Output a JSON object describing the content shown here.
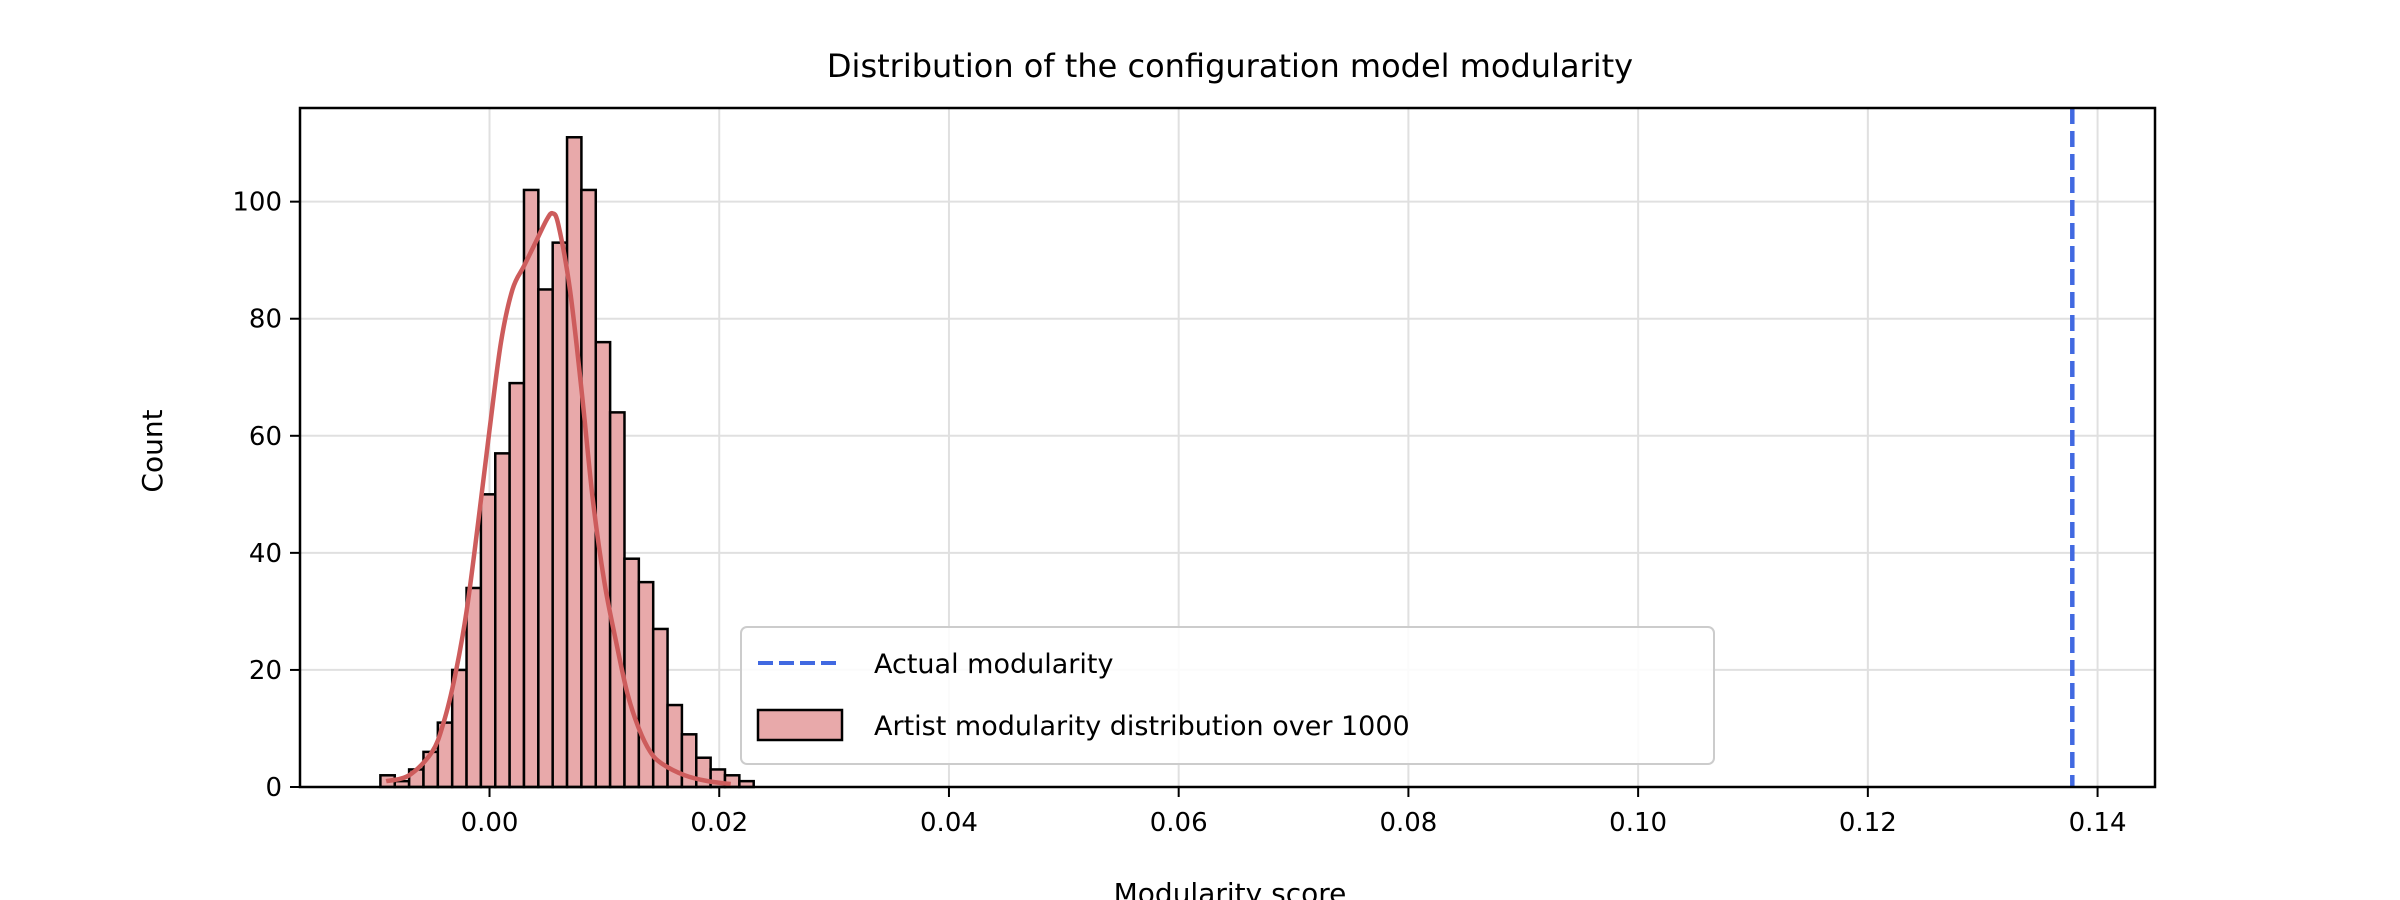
{
  "chart_data": {
    "type": "bar",
    "title": "Distribution of the configuration model modularity",
    "xlabel": "Modularity score",
    "ylabel": "Count",
    "xlim": [
      -0.0165,
      0.145
    ],
    "ylim": [
      0,
      116
    ],
    "x_ticks": [
      0.0,
      0.02,
      0.04,
      0.06,
      0.08,
      0.1,
      0.12,
      0.14
    ],
    "x_tick_labels": [
      "0.00",
      "0.02",
      "0.04",
      "0.06",
      "0.08",
      "0.10",
      "0.12",
      "0.14"
    ],
    "y_ticks": [
      0,
      20,
      40,
      60,
      80,
      100
    ],
    "y_tick_labels": [
      "0",
      "20",
      "40",
      "60",
      "80",
      "100"
    ],
    "grid": true,
    "legend_position": "lower-center",
    "histogram": {
      "name": "Artist modularity distribution over 1000",
      "bin_edges_start": -0.0095,
      "bin_width": 0.00125,
      "counts": [
        2,
        1,
        3,
        6,
        11,
        20,
        34,
        50,
        57,
        69,
        102,
        85,
        93,
        111,
        102,
        76,
        64,
        39,
        35,
        27,
        14,
        9,
        5,
        3,
        2,
        1
      ],
      "fill_color": "#e8a9aa",
      "edge_color": "#000000"
    },
    "kde": {
      "x": [
        -0.009,
        -0.007,
        -0.005,
        -0.004,
        -0.003,
        -0.002,
        -0.001,
        0.0,
        0.001,
        0.002,
        0.003,
        0.004,
        0.005,
        0.0055,
        0.006,
        0.007,
        0.008,
        0.009,
        0.01,
        0.011,
        0.012,
        0.013,
        0.014,
        0.015,
        0.017,
        0.019,
        0.021
      ],
      "y": [
        1,
        2,
        6,
        11,
        19,
        30,
        45,
        61,
        76,
        85,
        89,
        93,
        97,
        98,
        96,
        85,
        68,
        49,
        35,
        25,
        16,
        10,
        6,
        4,
        2,
        1,
        0.5
      ],
      "color": "#cd5c5c"
    },
    "reference_line": {
      "name": "Actual modularity",
      "x": 0.1378,
      "color": "#4169e1",
      "style": "dashed"
    }
  }
}
